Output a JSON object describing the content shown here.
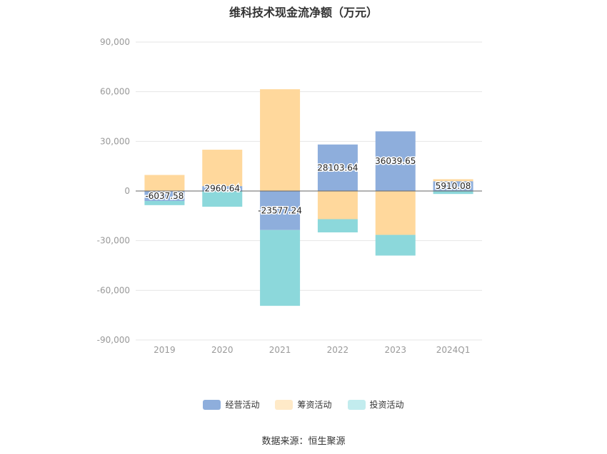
{
  "chart_data": {
    "type": "bar",
    "stacked": true,
    "title": "维科技术现金流净额（万元）",
    "categories": [
      "2019",
      "2020",
      "2021",
      "2022",
      "2023",
      "2024Q1"
    ],
    "y_ticks": [
      "90,000",
      "60,000",
      "30,000",
      "0",
      "-30,000",
      "-60,000",
      "-90,000"
    ],
    "ylim": [
      -90000,
      90000
    ],
    "series": [
      {
        "name": "经营活动",
        "color": "#8eaedc",
        "values": [
          -6037.58,
          2960.64,
          -23577.24,
          28103.64,
          36039.65,
          5910.08
        ]
      },
      {
        "name": "筹资活动",
        "color": "#ffd89c",
        "values": [
          9700,
          22000,
          61500,
          -17000,
          -26500,
          1200
        ]
      },
      {
        "name": "投资活动",
        "color": "#8cd8db",
        "values": [
          -2500,
          -9500,
          -45800,
          -8000,
          -12500,
          -1800
        ]
      }
    ],
    "data_labels": [
      "-6037.58",
      "2960.64",
      "-23577.24",
      "28103.64",
      "36039.65",
      "5910.08"
    ],
    "legend_position": "bottom"
  },
  "legend": [
    {
      "label": "经营活动",
      "color": "#8eaedc"
    },
    {
      "label": "筹资活动",
      "color": "#ffeac8"
    },
    {
      "label": "投资活动",
      "color": "#c2ecee"
    }
  ],
  "source_text": "数据来源：恒生聚源"
}
